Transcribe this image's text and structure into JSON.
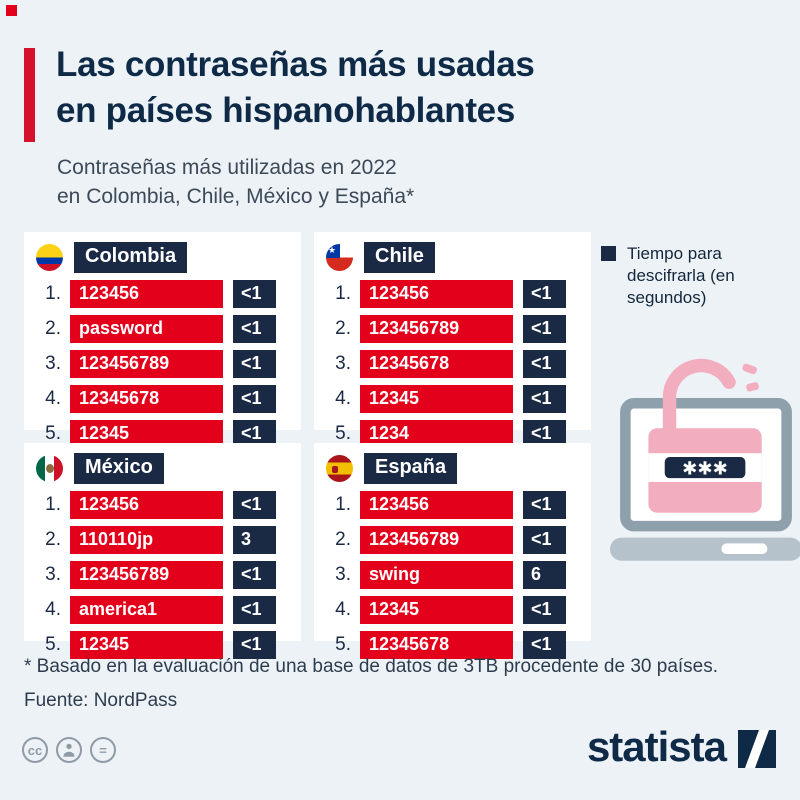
{
  "header": {
    "title_line1": "Las contraseñas más usadas",
    "title_line2": "en países hispanohablantes",
    "subtitle_line1": "Contraseñas más utilizadas en 2022",
    "subtitle_line2": "en Colombia, Chile, México y España*"
  },
  "legend": {
    "text": "Tiempo para descifrarla (en segundos)"
  },
  "chart_data": {
    "type": "table",
    "title": "Las contraseñas más usadas en países hispanohablantes",
    "subtitle": "Contraseñas más utilizadas en 2022 en Colombia, Chile, México y España*",
    "legend": "Tiempo para descifrarla (en segundos)",
    "columns": [
      "rank",
      "password",
      "time_to_crack_seconds"
    ],
    "groups": [
      {
        "id": "colombia",
        "country": "Colombia",
        "rows": [
          [
            "1.",
            "123456",
            "<1"
          ],
          [
            "2.",
            "password",
            "<1"
          ],
          [
            "3.",
            "123456789",
            "<1"
          ],
          [
            "4.",
            "12345678",
            "<1"
          ],
          [
            "5.",
            "12345",
            "<1"
          ]
        ]
      },
      {
        "id": "chile",
        "country": "Chile",
        "rows": [
          [
            "1.",
            "123456",
            "<1"
          ],
          [
            "2.",
            "123456789",
            "<1"
          ],
          [
            "3.",
            "12345678",
            "<1"
          ],
          [
            "4.",
            "12345",
            "<1"
          ],
          [
            "5.",
            "1234",
            "<1"
          ]
        ]
      },
      {
        "id": "mexico",
        "country": "México",
        "rows": [
          [
            "1.",
            "123456",
            "<1"
          ],
          [
            "2.",
            "110110jp",
            "3"
          ],
          [
            "3.",
            "123456789",
            "<1"
          ],
          [
            "4.",
            "america1",
            "<1"
          ],
          [
            "5.",
            "12345",
            "<1"
          ]
        ]
      },
      {
        "id": "espana",
        "country": "España",
        "rows": [
          [
            "1.",
            "123456",
            "<1"
          ],
          [
            "2.",
            "123456789",
            "<1"
          ],
          [
            "3.",
            "swing",
            "6"
          ],
          [
            "4.",
            "12345",
            "<1"
          ],
          [
            "5.",
            "12345678",
            "<1"
          ]
        ]
      }
    ]
  },
  "footnote": "* Basado en la evaluación de una base de datos de 3TB procedente de 30 países.",
  "source": "Fuente: NordPass",
  "footer": {
    "brand": "statista",
    "cc_glyph": "cc",
    "equals_glyph": "="
  },
  "colors": {
    "accent_red": "#e2001a",
    "navy": "#1b2a44",
    "background": "#edf2f7"
  }
}
